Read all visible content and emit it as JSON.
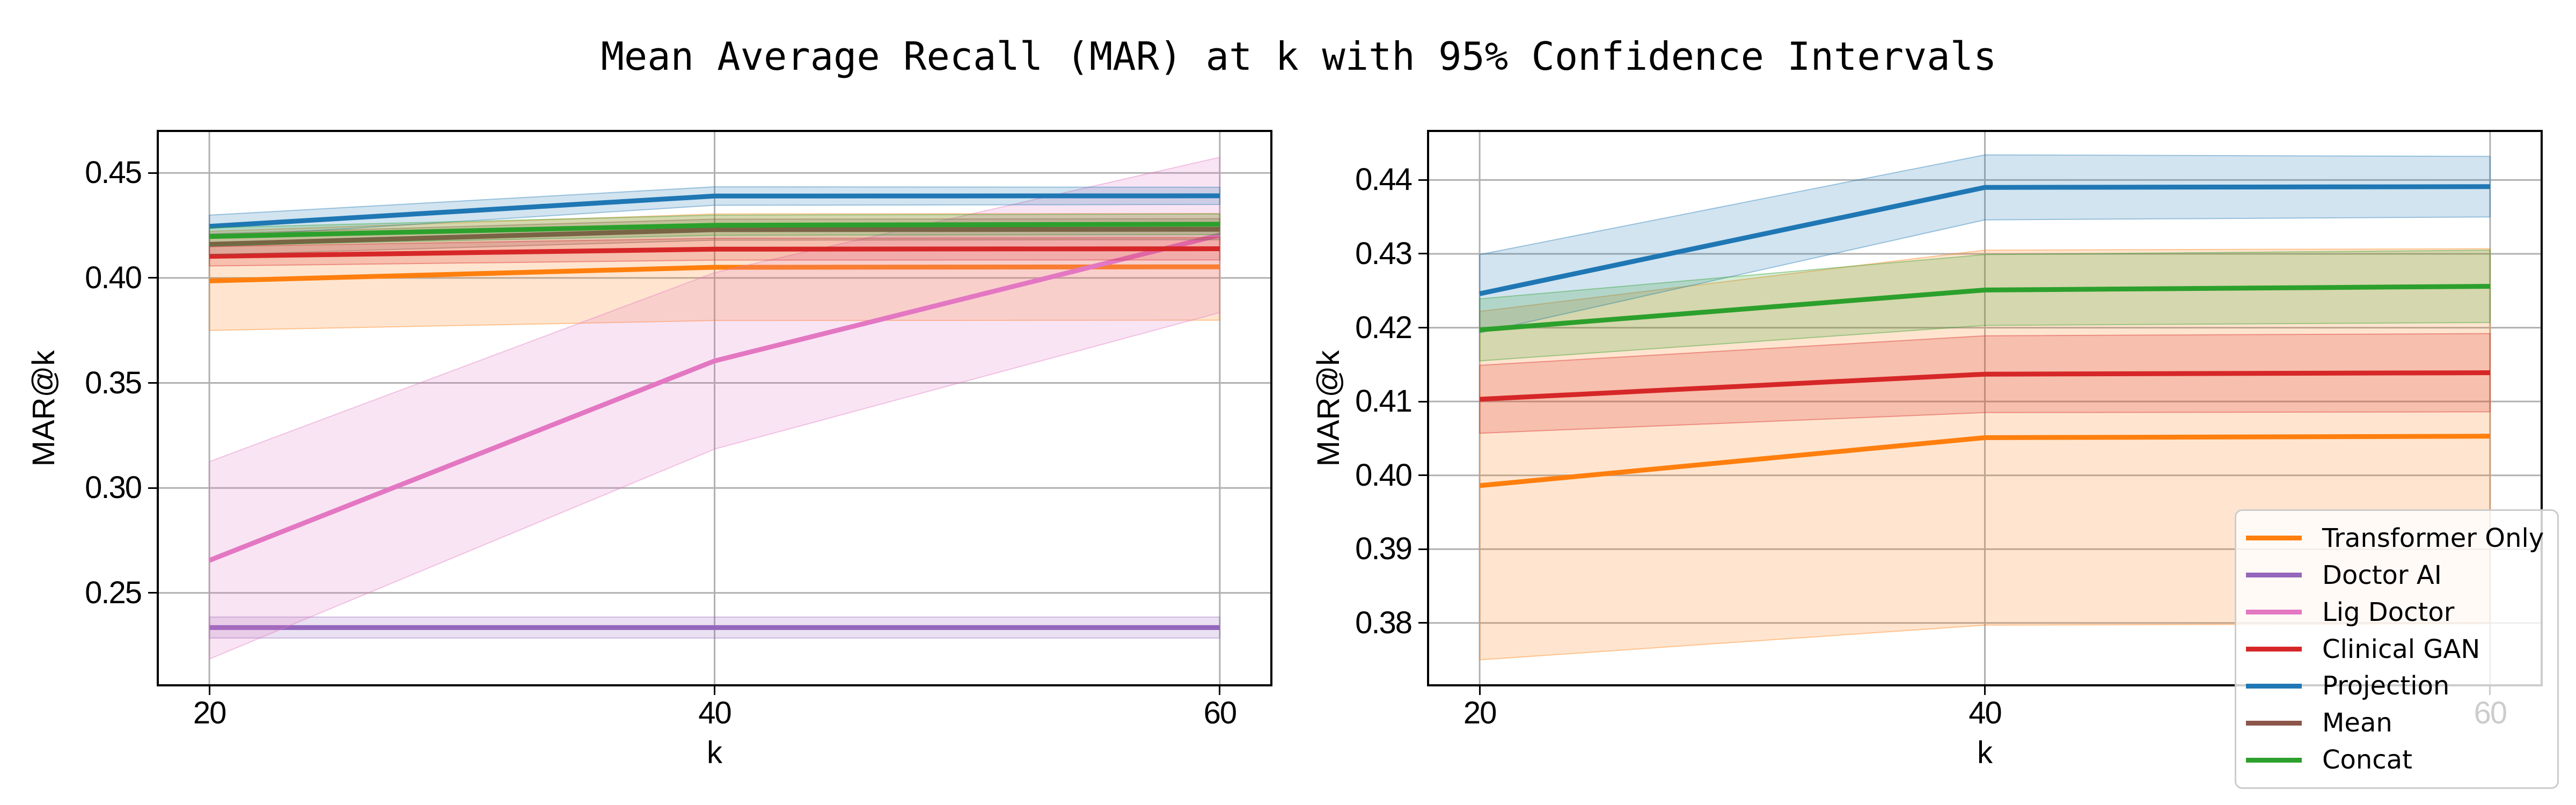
{
  "title": "Mean Average Recall (MAR) at k with 95% Confidence Intervals",
  "legend": {
    "entries": [
      {
        "label": "Transformer Only",
        "color": "#ff7f0e"
      },
      {
        "label": "Doctor AI",
        "color": "#9467bd"
      },
      {
        "label": "Lig Doctor",
        "color": "#e377c2"
      },
      {
        "label": "Clinical GAN",
        "color": "#d62728"
      },
      {
        "label": "Projection",
        "color": "#1f77b4"
      },
      {
        "label": "Mean",
        "color": "#8c564b"
      },
      {
        "label": "Concat",
        "color": "#2ca02c"
      }
    ]
  },
  "style": {
    "grid_color": "#b0b0b0",
    "spine_color": "#000000",
    "band_alpha": 0.2,
    "line_width": 9
  },
  "chart_data": [
    {
      "type": "line",
      "panel": "left",
      "xlabel": "k",
      "ylabel": "MAR@k",
      "x": [
        20,
        40,
        60
      ],
      "xlim": [
        18,
        62
      ],
      "ylim": [
        0.2065,
        0.4695
      ],
      "grid": true,
      "xticks": [
        {
          "v": 20,
          "label": "20"
        },
        {
          "v": 40,
          "label": "40"
        },
        {
          "v": 60,
          "label": "60"
        }
      ],
      "yticks": [
        {
          "v": 0.45,
          "label": "0.45"
        },
        {
          "v": 0.4,
          "label": "0.40"
        },
        {
          "v": 0.35,
          "label": "0.35"
        },
        {
          "v": 0.3,
          "label": "0.30"
        },
        {
          "v": 0.25,
          "label": "0.25"
        }
      ],
      "series": [
        {
          "name": "Transformer Only",
          "color": "#ff7f0e",
          "values": [
            0.3986,
            0.4051,
            0.4053
          ],
          "ci_lower": [
            0.375,
            0.3797,
            0.3799
          ],
          "ci_upper": [
            0.4222,
            0.4305,
            0.4307
          ]
        },
        {
          "name": "Doctor AI",
          "color": "#9467bd",
          "values": [
            0.2335,
            0.2335,
            0.2335
          ],
          "ci_lower": [
            0.2285,
            0.2285,
            0.2285
          ],
          "ci_upper": [
            0.2385,
            0.2385,
            0.2385
          ]
        },
        {
          "name": "Lig Doctor",
          "color": "#e377c2",
          "values": [
            0.2655,
            0.3605,
            0.4205
          ],
          "ci_lower": [
            0.2185,
            0.3185,
            0.3835
          ],
          "ci_upper": [
            0.3125,
            0.4025,
            0.4575
          ]
        },
        {
          "name": "Clinical GAN",
          "color": "#d62728",
          "values": [
            0.4103,
            0.4137,
            0.4139
          ],
          "ci_lower": [
            0.4057,
            0.4085,
            0.4086
          ],
          "ci_upper": [
            0.4149,
            0.4189,
            0.4192
          ]
        },
        {
          "name": "Projection",
          "color": "#1f77b4",
          "values": [
            0.4246,
            0.439,
            0.4391
          ],
          "ci_lower": [
            0.4193,
            0.4346,
            0.435
          ],
          "ci_upper": [
            0.4299,
            0.4434,
            0.4432
          ]
        },
        {
          "name": "Mean",
          "color": "#8c564b",
          "values": [
            0.416,
            0.423,
            0.4232
          ],
          "ci_lower": [
            0.411,
            0.418,
            0.4182
          ],
          "ci_upper": [
            0.421,
            0.428,
            0.4282
          ]
        },
        {
          "name": "Concat",
          "color": "#2ca02c",
          "values": [
            0.4197,
            0.4251,
            0.4256
          ],
          "ci_lower": [
            0.4155,
            0.4203,
            0.4207
          ],
          "ci_upper": [
            0.4239,
            0.4299,
            0.4305
          ]
        }
      ]
    },
    {
      "type": "line",
      "panel": "right",
      "xlabel": "k",
      "ylabel": "MAR@k",
      "x": [
        20,
        40,
        60
      ],
      "xlim": [
        18,
        62
      ],
      "ylim": [
        0.3717,
        0.4465
      ],
      "grid": true,
      "xticks": [
        {
          "v": 20,
          "label": "20"
        },
        {
          "v": 40,
          "label": "40"
        },
        {
          "v": 60,
          "label": "60"
        }
      ],
      "yticks": [
        {
          "v": 0.44,
          "label": "0.44"
        },
        {
          "v": 0.43,
          "label": "0.43"
        },
        {
          "v": 0.42,
          "label": "0.42"
        },
        {
          "v": 0.41,
          "label": "0.41"
        },
        {
          "v": 0.4,
          "label": "0.40"
        },
        {
          "v": 0.39,
          "label": "0.39"
        },
        {
          "v": 0.38,
          "label": "0.38"
        }
      ],
      "series": [
        {
          "name": "Transformer Only",
          "color": "#ff7f0e",
          "values": [
            0.3986,
            0.4051,
            0.4053
          ],
          "ci_lower": [
            0.375,
            0.3797,
            0.3799
          ],
          "ci_upper": [
            0.4222,
            0.4305,
            0.4307
          ]
        },
        {
          "name": "Clinical GAN",
          "color": "#d62728",
          "values": [
            0.4103,
            0.4137,
            0.4139
          ],
          "ci_lower": [
            0.4057,
            0.4085,
            0.4086
          ],
          "ci_upper": [
            0.4149,
            0.4189,
            0.4192
          ]
        },
        {
          "name": "Projection",
          "color": "#1f77b4",
          "values": [
            0.4246,
            0.439,
            0.4391
          ],
          "ci_lower": [
            0.4193,
            0.4346,
            0.435
          ],
          "ci_upper": [
            0.4299,
            0.4434,
            0.4432
          ]
        },
        {
          "name": "Concat",
          "color": "#2ca02c",
          "values": [
            0.4197,
            0.4251,
            0.4256
          ],
          "ci_lower": [
            0.4155,
            0.4203,
            0.4207
          ],
          "ci_upper": [
            0.4239,
            0.4299,
            0.4305
          ]
        }
      ]
    }
  ]
}
